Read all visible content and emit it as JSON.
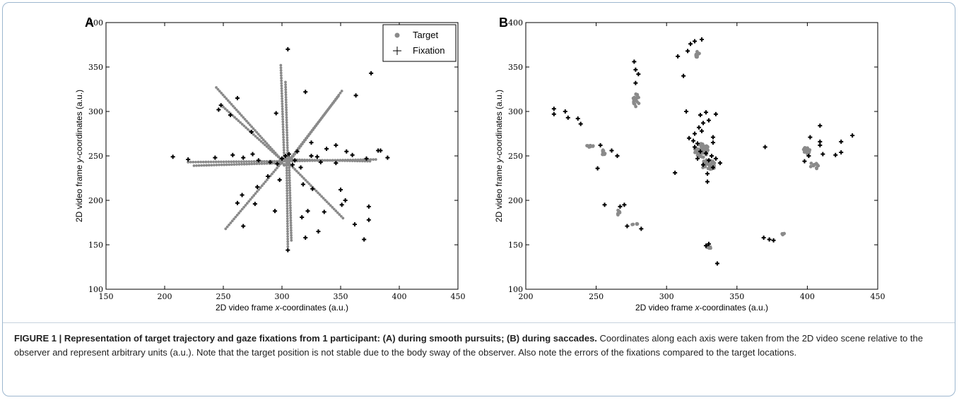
{
  "caption": {
    "title": "FIGURE 1 | Representation of target trajectory and gaze fixations from 1 participant: (A) during smooth pursuits; (B) during saccades.",
    "body": "Coordinates along each axis were taken from the 2D video scene relative to the observer and represent arbitrary units (a.u.). Note that the target position is not stable due to the body sway of the observer. Also note the errors of the fixations compared to the target locations."
  },
  "colors": {
    "target": "#8a8a8a",
    "fixation": "#000000"
  },
  "chart_data": [
    {
      "panel": "A",
      "type": "scatter",
      "xlabel_prefix": "2D video frame ",
      "xlabel_var": "x",
      "xlabel_suffix": "-coordinates (a.u.)",
      "ylabel_prefix": "2D video frame ",
      "ylabel_var": "y",
      "ylabel_suffix": "-coordinates (a.u.)",
      "xlim": [
        150,
        450
      ],
      "ylim": [
        100,
        400
      ],
      "xticks": [
        "150",
        "200",
        "250",
        "300",
        "350",
        "400",
        "450"
      ],
      "yticks": [
        "100",
        "150",
        "200",
        "250",
        "300",
        "350",
        "400"
      ],
      "legend": {
        "position": "top-right",
        "entries": [
          "Target",
          "Fixation"
        ]
      },
      "target_paths": [
        [
          [
            220,
            243
          ],
          [
            300,
            244
          ]
        ],
        [
          [
            225,
            239
          ],
          [
            300,
            242
          ]
        ],
        [
          [
            300,
            244
          ],
          [
            380,
            246
          ]
        ],
        [
          [
            300,
            246
          ],
          [
            375,
            244
          ]
        ],
        [
          [
            299,
            352
          ],
          [
            302,
            245
          ]
        ],
        [
          [
            303,
            333
          ],
          [
            305,
            245
          ]
        ],
        [
          [
            304,
            245
          ],
          [
            305,
            148
          ]
        ],
        [
          [
            306,
            245
          ],
          [
            308,
            155
          ]
        ],
        [
          [
            244,
            327
          ],
          [
            300,
            245
          ]
        ],
        [
          [
            250,
            305
          ],
          [
            300,
            245
          ]
        ],
        [
          [
            351,
            323
          ],
          [
            307,
            245
          ]
        ],
        [
          [
            348,
            317
          ],
          [
            306,
            245
          ]
        ],
        [
          [
            305,
            243
          ],
          [
            352,
            180
          ]
        ],
        [
          [
            252,
            168
          ],
          [
            300,
            243
          ]
        ]
      ],
      "target_dots": [
        [
          301,
          245
        ],
        [
          303,
          247
        ],
        [
          305,
          242
        ],
        [
          298,
          244
        ],
        [
          302,
          240
        ],
        [
          306,
          248
        ]
      ],
      "fixations": [
        [
          305,
          370
        ],
        [
          376,
          343
        ],
        [
          320,
          322
        ],
        [
          363,
          318
        ],
        [
          262,
          315
        ],
        [
          248,
          307
        ],
        [
          246,
          302
        ],
        [
          256,
          296
        ],
        [
          295,
          298
        ],
        [
          274,
          277
        ],
        [
          325,
          265
        ],
        [
          338,
          258
        ],
        [
          346,
          262
        ],
        [
          355,
          255
        ],
        [
          360,
          251
        ],
        [
          384,
          256
        ],
        [
          382,
          256
        ],
        [
          390,
          248
        ],
        [
          207,
          249
        ],
        [
          220,
          246
        ],
        [
          243,
          248
        ],
        [
          258,
          251
        ],
        [
          267,
          248
        ],
        [
          275,
          252
        ],
        [
          280,
          245
        ],
        [
          290,
          243
        ],
        [
          296,
          241
        ],
        [
          300,
          247
        ],
        [
          303,
          250
        ],
        [
          306,
          252
        ],
        [
          309,
          240
        ],
        [
          311,
          245
        ],
        [
          313,
          255
        ],
        [
          316,
          237
        ],
        [
          325,
          250
        ],
        [
          330,
          249
        ],
        [
          333,
          243
        ],
        [
          346,
          242
        ],
        [
          372,
          247
        ],
        [
          288,
          227
        ],
        [
          279,
          215
        ],
        [
          266,
          206
        ],
        [
          298,
          223
        ],
        [
          326,
          213
        ],
        [
          350,
          212
        ],
        [
          354,
          200
        ],
        [
          351,
          195
        ],
        [
          374,
          193
        ],
        [
          262,
          197
        ],
        [
          277,
          196
        ],
        [
          294,
          188
        ],
        [
          317,
          181
        ],
        [
          322,
          188
        ],
        [
          336,
          187
        ],
        [
          374,
          178
        ],
        [
          362,
          173
        ],
        [
          331,
          165
        ],
        [
          320,
          158
        ],
        [
          370,
          156
        ],
        [
          267,
          171
        ],
        [
          305,
          144
        ],
        [
          318,
          218
        ]
      ]
    },
    {
      "panel": "B",
      "type": "scatter",
      "xlabel_prefix": "2D video frame ",
      "xlabel_var": "x",
      "xlabel_suffix": "-coordinates (a.u.)",
      "ylabel_prefix": "2D video frame ",
      "ylabel_var": "y",
      "ylabel_suffix": "-coordinates (a.u.)",
      "xlim": [
        200,
        450
      ],
      "ylim": [
        100,
        400
      ],
      "xticks": [
        "200",
        "250",
        "300",
        "350",
        "400",
        "450"
      ],
      "yticks": [
        "100",
        "150",
        "200",
        "250",
        "300",
        "350",
        "400"
      ],
      "target_clusters": [
        {
          "x": 322,
          "y": 363,
          "rx": 1.5,
          "ry": 5,
          "n": 10
        },
        {
          "x": 278,
          "y": 312,
          "rx": 2.5,
          "ry": 8,
          "n": 18
        },
        {
          "x": 246,
          "y": 261,
          "rx": 3,
          "ry": 1.5,
          "n": 8
        },
        {
          "x": 255,
          "y": 254,
          "rx": 1.5,
          "ry": 3,
          "n": 8
        },
        {
          "x": 325,
          "y": 256,
          "rx": 5,
          "ry": 8,
          "n": 60
        },
        {
          "x": 330,
          "y": 240,
          "rx": 5,
          "ry": 6,
          "n": 40
        },
        {
          "x": 400,
          "y": 256,
          "rx": 3,
          "ry": 4,
          "n": 18
        },
        {
          "x": 405,
          "y": 240,
          "rx": 3,
          "ry": 5,
          "n": 12
        },
        {
          "x": 266,
          "y": 186,
          "rx": 1.5,
          "ry": 3,
          "n": 6
        },
        {
          "x": 278,
          "y": 173,
          "rx": 2.5,
          "ry": 1.5,
          "n": 6
        },
        {
          "x": 330,
          "y": 147,
          "rx": 2,
          "ry": 1.5,
          "n": 8
        },
        {
          "x": 383,
          "y": 162,
          "rx": 1,
          "ry": 1.5,
          "n": 4
        }
      ],
      "fixations": [
        [
          317,
          376
        ],
        [
          320,
          379
        ],
        [
          325,
          381
        ],
        [
          315,
          368
        ],
        [
          308,
          362
        ],
        [
          277,
          356
        ],
        [
          278,
          347
        ],
        [
          280,
          342
        ],
        [
          278,
          332
        ],
        [
          312,
          340
        ],
        [
          220,
          303
        ],
        [
          220,
          297
        ],
        [
          228,
          300
        ],
        [
          230,
          293
        ],
        [
          237,
          292
        ],
        [
          239,
          286
        ],
        [
          253,
          262
        ],
        [
          261,
          256
        ],
        [
          265,
          250
        ],
        [
          251,
          236
        ],
        [
          314,
          300
        ],
        [
          328,
          299
        ],
        [
          335,
          297
        ],
        [
          324,
          296
        ],
        [
          330,
          290
        ],
        [
          326,
          287
        ],
        [
          323,
          282
        ],
        [
          325,
          278
        ],
        [
          320,
          275
        ],
        [
          316,
          270
        ],
        [
          319,
          267
        ],
        [
          322,
          264
        ],
        [
          333,
          271
        ],
        [
          333,
          265
        ],
        [
          320,
          260
        ],
        [
          324,
          255
        ],
        [
          328,
          253
        ],
        [
          332,
          250
        ],
        [
          322,
          247
        ],
        [
          330,
          245
        ],
        [
          326,
          240
        ],
        [
          335,
          247
        ],
        [
          338,
          242
        ],
        [
          333,
          237
        ],
        [
          329,
          230
        ],
        [
          329,
          221
        ],
        [
          306,
          231
        ],
        [
          370,
          260
        ],
        [
          398,
          244
        ],
        [
          401,
          250
        ],
        [
          402,
          271
        ],
        [
          409,
          284
        ],
        [
          409,
          266
        ],
        [
          409,
          262
        ],
        [
          411,
          252
        ],
        [
          420,
          251
        ],
        [
          424,
          254
        ],
        [
          424,
          266
        ],
        [
          432,
          273
        ],
        [
          256,
          195
        ],
        [
          267,
          193
        ],
        [
          270,
          195
        ],
        [
          272,
          171
        ],
        [
          282,
          168
        ],
        [
          328,
          149
        ],
        [
          330,
          151
        ],
        [
          336,
          129
        ],
        [
          369,
          158
        ],
        [
          373,
          156
        ],
        [
          376,
          155
        ]
      ]
    }
  ]
}
